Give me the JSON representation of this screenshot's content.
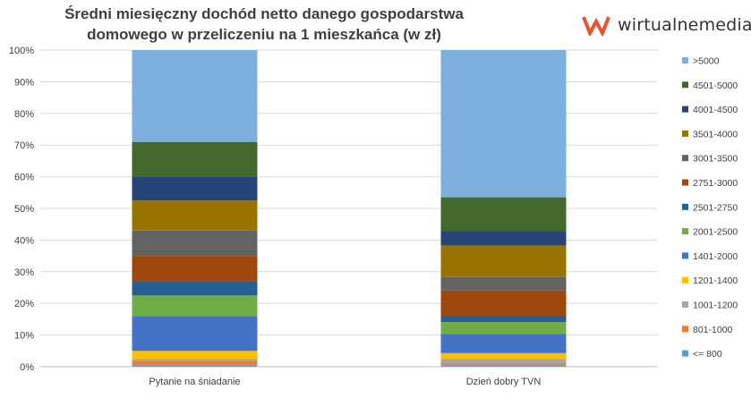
{
  "chart_data": {
    "type": "bar",
    "stacked": true,
    "title_lines": [
      "Średni miesięczny dochód netto danego gospodarstwa",
      "domowego w przeliczeniu na 1 mieszkańca (w zł)"
    ],
    "categories": [
      "Pytanie na śniadanie",
      "Dzień dobry TVN"
    ],
    "ylim": [
      0,
      100
    ],
    "yticks": [
      "0%",
      "10%",
      "20%",
      "30%",
      "40%",
      "50%",
      "60%",
      "70%",
      "80%",
      "90%",
      "100%"
    ],
    "legend_position": "right",
    "series": [
      {
        "name": "<= 800",
        "color": "#5B9BD5",
        "values": [
          0.5,
          0.5
        ]
      },
      {
        "name": "801-1000",
        "color": "#ED7D31",
        "values": [
          1.2,
          0.5
        ]
      },
      {
        "name": "1001-1200",
        "color": "#A5A5A5",
        "values": [
          0.8,
          1.5
        ]
      },
      {
        "name": "1201-1400",
        "color": "#FFC000",
        "values": [
          2.5,
          1.8
        ]
      },
      {
        "name": "1401-2000",
        "color": "#4472C4",
        "values": [
          11.0,
          6.0
        ]
      },
      {
        "name": "2001-2500",
        "color": "#70AD47",
        "values": [
          6.5,
          3.8
        ]
      },
      {
        "name": "2501-2750",
        "color": "#255E91",
        "values": [
          4.5,
          2.0
        ]
      },
      {
        "name": "2751-3000",
        "color": "#9E480E",
        "values": [
          8.0,
          8.0
        ]
      },
      {
        "name": "3001-3500",
        "color": "#636363",
        "values": [
          8.0,
          4.2
        ]
      },
      {
        "name": "3501-4000",
        "color": "#997300",
        "values": [
          9.5,
          10.0
        ]
      },
      {
        "name": "4001-4500",
        "color": "#264478",
        "values": [
          7.5,
          4.5
        ]
      },
      {
        "name": "4501-5000",
        "color": "#43682B",
        "values": [
          11.0,
          10.7
        ]
      },
      {
        "name": ">5000",
        "color": "#7CAFDD",
        "values": [
          29.0,
          46.5
        ]
      }
    ]
  },
  "branding": {
    "logo_text": "wirtualnemedia",
    "logo_color": "#E8542F"
  }
}
